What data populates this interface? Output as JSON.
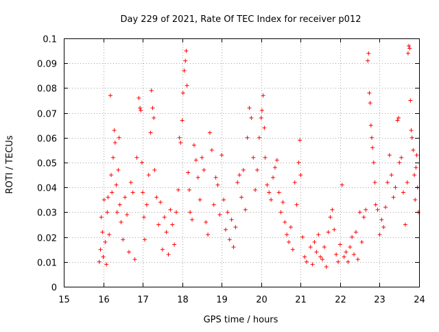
{
  "chart_data": {
    "type": "scatter",
    "title": "Day 229 of 2021, Rate Of TEC Index for receiver p012",
    "xlabel": "GPS time / hours",
    "ylabel": "ROTI / TECUs",
    "xlim": [
      15,
      24
    ],
    "ylim": [
      0,
      0.1
    ],
    "x_ticks": [
      "15",
      "16",
      "17",
      "18",
      "19",
      "20",
      "21",
      "22",
      "23",
      "24"
    ],
    "y_ticks": [
      "0",
      "0.01",
      "0.02",
      "0.03",
      "0.04",
      "0.05",
      "0.06",
      "0.07",
      "0.08",
      "0.09",
      "0.1"
    ],
    "grid": true,
    "marker": "plus",
    "color": "#ff0000",
    "series": [
      {
        "points": [
          [
            15.9,
            0.01
          ],
          [
            15.93,
            0.015
          ],
          [
            15.95,
            0.028
          ],
          [
            15.98,
            0.022
          ],
          [
            16.0,
            0.012
          ],
          [
            16.02,
            0.035
          ],
          [
            16.05,
            0.018
          ],
          [
            16.08,
            0.009
          ],
          [
            16.1,
            0.03
          ],
          [
            16.12,
            0.036
          ],
          [
            16.15,
            0.021
          ],
          [
            16.18,
            0.077
          ],
          [
            16.2,
            0.045
          ],
          [
            16.22,
            0.038
          ],
          [
            16.25,
            0.052
          ],
          [
            16.28,
            0.063
          ],
          [
            16.3,
            0.058
          ],
          [
            16.33,
            0.041
          ],
          [
            16.35,
            0.03
          ],
          [
            16.38,
            0.047
          ],
          [
            16.4,
            0.06
          ],
          [
            16.42,
            0.033
          ],
          [
            16.45,
            0.026
          ],
          [
            16.5,
            0.019
          ],
          [
            16.55,
            0.036
          ],
          [
            16.6,
            0.029
          ],
          [
            16.65,
            0.014
          ],
          [
            16.7,
            0.042
          ],
          [
            16.75,
            0.038
          ],
          [
            16.8,
            0.011
          ],
          [
            16.85,
            0.052
          ],
          [
            16.9,
            0.076
          ],
          [
            16.93,
            0.072
          ],
          [
            16.95,
            0.071
          ],
          [
            16.98,
            0.05
          ],
          [
            17.0,
            0.038
          ],
          [
            17.03,
            0.028
          ],
          [
            17.05,
            0.019
          ],
          [
            17.1,
            0.033
          ],
          [
            17.15,
            0.045
          ],
          [
            17.2,
            0.062
          ],
          [
            17.22,
            0.079
          ],
          [
            17.25,
            0.072
          ],
          [
            17.28,
            0.068
          ],
          [
            17.3,
            0.047
          ],
          [
            17.35,
            0.036
          ],
          [
            17.4,
            0.025
          ],
          [
            17.45,
            0.034
          ],
          [
            17.5,
            0.015
          ],
          [
            17.55,
            0.028
          ],
          [
            17.6,
            0.022
          ],
          [
            17.65,
            0.013
          ],
          [
            17.7,
            0.031
          ],
          [
            17.75,
            0.025
          ],
          [
            17.8,
            0.017
          ],
          [
            17.85,
            0.03
          ],
          [
            17.9,
            0.039
          ],
          [
            17.93,
            0.06
          ],
          [
            17.96,
            0.058
          ],
          [
            18.0,
            0.067
          ],
          [
            18.02,
            0.078
          ],
          [
            18.05,
            0.087
          ],
          [
            18.08,
            0.091
          ],
          [
            18.1,
            0.095
          ],
          [
            18.12,
            0.081
          ],
          [
            18.15,
            0.046
          ],
          [
            18.18,
            0.039
          ],
          [
            18.2,
            0.03
          ],
          [
            18.25,
            0.027
          ],
          [
            18.3,
            0.057
          ],
          [
            18.35,
            0.051
          ],
          [
            18.4,
            0.044
          ],
          [
            18.45,
            0.035
          ],
          [
            18.5,
            0.052
          ],
          [
            18.55,
            0.047
          ],
          [
            18.6,
            0.026
          ],
          [
            18.65,
            0.021
          ],
          [
            18.7,
            0.062
          ],
          [
            18.75,
            0.055
          ],
          [
            18.8,
            0.033
          ],
          [
            18.85,
            0.044
          ],
          [
            18.9,
            0.041
          ],
          [
            18.95,
            0.029
          ],
          [
            19.0,
            0.053
          ],
          [
            19.05,
            0.035
          ],
          [
            19.1,
            0.023
          ],
          [
            19.15,
            0.03
          ],
          [
            19.2,
            0.019
          ],
          [
            19.25,
            0.027
          ],
          [
            19.3,
            0.016
          ],
          [
            19.35,
            0.024
          ],
          [
            19.4,
            0.042
          ],
          [
            19.45,
            0.045
          ],
          [
            19.5,
            0.036
          ],
          [
            19.55,
            0.047
          ],
          [
            19.6,
            0.031
          ],
          [
            19.65,
            0.06
          ],
          [
            19.7,
            0.072
          ],
          [
            19.75,
            0.068
          ],
          [
            19.8,
            0.052
          ],
          [
            19.85,
            0.039
          ],
          [
            19.9,
            0.047
          ],
          [
            19.95,
            0.06
          ],
          [
            20.0,
            0.068
          ],
          [
            20.02,
            0.071
          ],
          [
            20.05,
            0.077
          ],
          [
            20.08,
            0.064
          ],
          [
            20.1,
            0.052
          ],
          [
            20.15,
            0.041
          ],
          [
            20.2,
            0.038
          ],
          [
            20.25,
            0.035
          ],
          [
            20.3,
            0.044
          ],
          [
            20.35,
            0.048
          ],
          [
            20.4,
            0.051
          ],
          [
            20.45,
            0.038
          ],
          [
            20.5,
            0.03
          ],
          [
            20.55,
            0.034
          ],
          [
            20.6,
            0.026
          ],
          [
            20.65,
            0.021
          ],
          [
            20.7,
            0.018
          ],
          [
            20.75,
            0.024
          ],
          [
            20.8,
            0.015
          ],
          [
            20.85,
            0.042
          ],
          [
            20.9,
            0.033
          ],
          [
            20.95,
            0.05
          ],
          [
            20.98,
            0.059
          ],
          [
            21.0,
            0.045
          ],
          [
            21.05,
            0.02
          ],
          [
            21.1,
            0.012
          ],
          [
            21.15,
            0.01
          ],
          [
            21.25,
            0.016
          ],
          [
            21.3,
            0.009
          ],
          [
            21.35,
            0.018
          ],
          [
            21.4,
            0.014
          ],
          [
            21.45,
            0.021
          ],
          [
            21.5,
            0.012
          ],
          [
            21.55,
            0.011
          ],
          [
            21.6,
            0.016
          ],
          [
            21.65,
            0.008
          ],
          [
            21.7,
            0.022
          ],
          [
            21.75,
            0.028
          ],
          [
            21.8,
            0.031
          ],
          [
            21.85,
            0.023
          ],
          [
            21.9,
            0.013
          ],
          [
            21.95,
            0.01
          ],
          [
            22.0,
            0.017
          ],
          [
            22.05,
            0.041
          ],
          [
            22.1,
            0.012
          ],
          [
            22.15,
            0.014
          ],
          [
            22.2,
            0.01
          ],
          [
            22.25,
            0.016
          ],
          [
            22.3,
            0.02
          ],
          [
            22.35,
            0.013
          ],
          [
            22.4,
            0.022
          ],
          [
            22.45,
            0.011
          ],
          [
            22.5,
            0.03
          ],
          [
            22.55,
            0.018
          ],
          [
            22.6,
            0.028
          ],
          [
            22.65,
            0.031
          ],
          [
            22.7,
            0.091
          ],
          [
            22.72,
            0.094
          ],
          [
            22.74,
            0.078
          ],
          [
            22.76,
            0.074
          ],
          [
            22.78,
            0.065
          ],
          [
            22.8,
            0.06
          ],
          [
            22.82,
            0.056
          ],
          [
            22.85,
            0.05
          ],
          [
            22.88,
            0.042
          ],
          [
            22.9,
            0.033
          ],
          [
            22.95,
            0.031
          ],
          [
            23.0,
            0.021
          ],
          [
            23.05,
            0.027
          ],
          [
            23.1,
            0.024
          ],
          [
            23.15,
            0.032
          ],
          [
            23.2,
            0.042
          ],
          [
            23.25,
            0.053
          ],
          [
            23.3,
            0.045
          ],
          [
            23.35,
            0.036
          ],
          [
            23.4,
            0.04
          ],
          [
            23.45,
            0.067
          ],
          [
            23.48,
            0.068
          ],
          [
            23.5,
            0.05
          ],
          [
            23.55,
            0.052
          ],
          [
            23.6,
            0.038
          ],
          [
            23.65,
            0.025
          ],
          [
            23.7,
            0.042
          ],
          [
            23.72,
            0.094
          ],
          [
            23.74,
            0.097
          ],
          [
            23.76,
            0.096
          ],
          [
            23.78,
            0.075
          ],
          [
            23.8,
            0.063
          ],
          [
            23.82,
            0.06
          ],
          [
            23.85,
            0.055
          ],
          [
            23.88,
            0.045
          ],
          [
            23.9,
            0.035
          ],
          [
            23.92,
            0.048
          ],
          [
            23.94,
            0.053
          ],
          [
            23.96,
            0.04
          ],
          [
            23.98,
            0.03
          ]
        ]
      }
    ]
  }
}
